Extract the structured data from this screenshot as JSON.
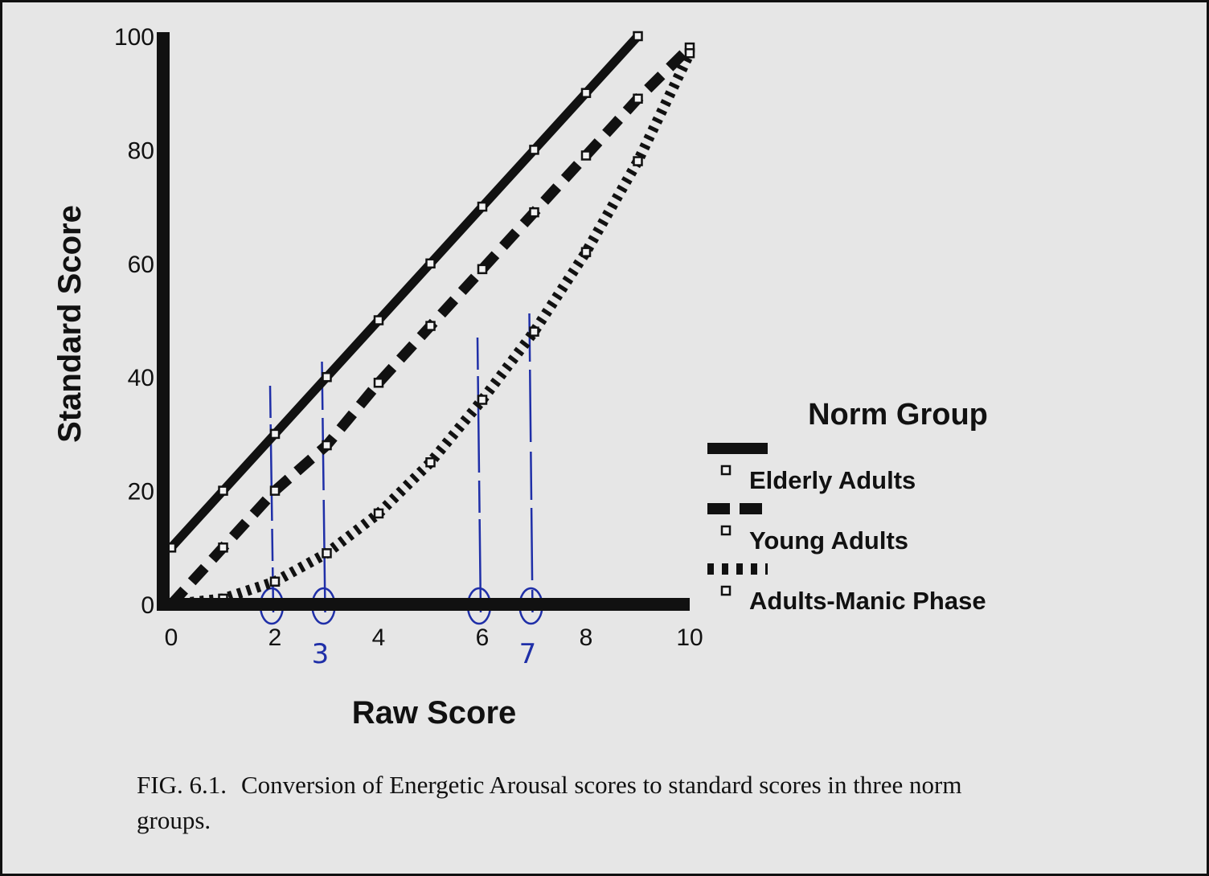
{
  "chart_data": {
    "type": "line",
    "xlabel": "Raw Score",
    "ylabel": "Standard Score",
    "xlim": [
      0,
      10
    ],
    "ylim": [
      0,
      100
    ],
    "xticks": [
      "0",
      "2",
      "4",
      "6",
      "8",
      "10"
    ],
    "yticks": [
      "0",
      "20",
      "40",
      "60",
      "80",
      "100"
    ],
    "grid": false,
    "legend_title": "Norm Group",
    "legend_position": "right",
    "series": [
      {
        "name": "Elderly Adults",
        "style": "solid",
        "x": [
          0,
          1,
          2,
          3,
          4,
          5,
          6,
          7,
          8,
          9
        ],
        "y": [
          10,
          20,
          30,
          40,
          50,
          60,
          70,
          80,
          90,
          100
        ]
      },
      {
        "name": "Young Adults",
        "style": "dashed",
        "x": [
          0,
          1,
          2,
          3,
          4,
          5,
          6,
          7,
          8,
          9,
          10
        ],
        "y": [
          0,
          10,
          20,
          28,
          39,
          49,
          59,
          69,
          79,
          89,
          98
        ]
      },
      {
        "name": "Adults-Manic Phase",
        "style": "dotted",
        "x": [
          0,
          1,
          2,
          3,
          4,
          5,
          6,
          7,
          8,
          9,
          10
        ],
        "y": [
          0,
          1,
          4,
          9,
          16,
          25,
          36,
          48,
          62,
          78,
          97
        ]
      }
    ],
    "annotations": {
      "color": "#1f2fa8",
      "vertical_marks_at_x": [
        2,
        3,
        6,
        7
      ],
      "handwritten_labels": [
        {
          "x": 3,
          "text": "3"
        },
        {
          "x": 7,
          "text": "7"
        }
      ]
    }
  },
  "caption": {
    "figure_number": "FIG. 6.1.",
    "text": "Conversion of Energetic Arousal scores to standard scores in three norm groups."
  }
}
